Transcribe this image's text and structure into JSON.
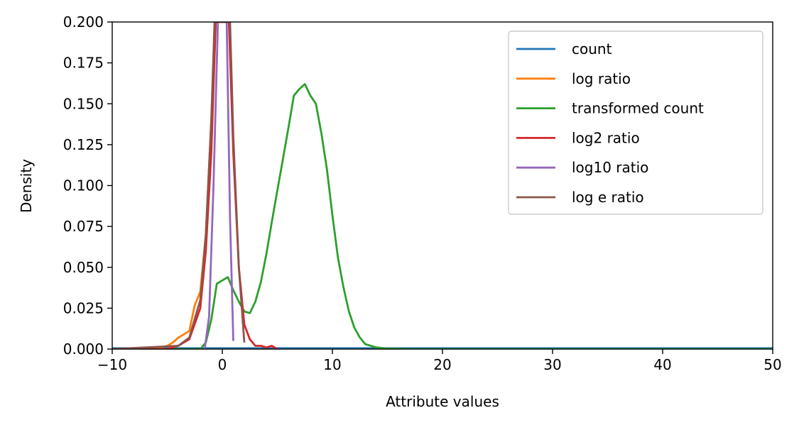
{
  "chart_data": {
    "type": "line",
    "xlabel": "Attribute values",
    "ylabel": "Density",
    "xlim": [
      -10,
      50
    ],
    "ylim": [
      0,
      0.2
    ],
    "x_ticks": [
      -10,
      0,
      10,
      20,
      30,
      40,
      50
    ],
    "x_tick_labels": [
      "−10",
      "0",
      "10",
      "20",
      "30",
      "40",
      "50"
    ],
    "y_ticks": [
      0,
      0.025,
      0.05,
      0.075,
      0.1,
      0.125,
      0.15,
      0.175,
      0.2
    ],
    "y_tick_labels": [
      "0.000",
      "0.025",
      "0.050",
      "0.075",
      "0.100",
      "0.125",
      "0.150",
      "0.175",
      "0.200"
    ],
    "grid": false,
    "legend_position": "top-right",
    "series": [
      {
        "name": "count",
        "color": "#1f77b4",
        "points": [
          [
            -10,
            0.0005
          ],
          [
            50,
            0.0005
          ]
        ]
      },
      {
        "name": "log ratio",
        "color": "#ff7f0e",
        "points": [
          [
            -10,
            0.0
          ],
          [
            -6,
            0.0003
          ],
          [
            -5,
            0.002
          ],
          [
            -4.5,
            0.004
          ],
          [
            -4,
            0.007
          ],
          [
            -3.5,
            0.009
          ],
          [
            -3,
            0.011
          ],
          [
            -2.5,
            0.027
          ],
          [
            -2,
            0.035
          ],
          [
            -1.5,
            0.07
          ],
          [
            -1,
            0.14
          ],
          [
            -0.6,
            0.2
          ]
        ]
      },
      {
        "name": "transformed count",
        "color": "#2ca02c",
        "points": [
          [
            -10,
            0.0
          ],
          [
            -2,
            0.0
          ],
          [
            -1.5,
            0.004
          ],
          [
            -1,
            0.018
          ],
          [
            -0.5,
            0.04
          ],
          [
            0.5,
            0.044
          ],
          [
            1,
            0.036
          ],
          [
            1.5,
            0.029
          ],
          [
            2,
            0.023
          ],
          [
            2.5,
            0.022
          ],
          [
            3,
            0.029
          ],
          [
            3.5,
            0.041
          ],
          [
            4,
            0.058
          ],
          [
            4.5,
            0.078
          ],
          [
            5,
            0.097
          ],
          [
            5.5,
            0.116
          ],
          [
            6,
            0.135
          ],
          [
            6.5,
            0.155
          ],
          [
            7,
            0.159
          ],
          [
            7.5,
            0.162
          ],
          [
            8,
            0.155
          ],
          [
            8.5,
            0.15
          ],
          [
            9,
            0.132
          ],
          [
            9.5,
            0.11
          ],
          [
            10,
            0.082
          ],
          [
            10.5,
            0.056
          ],
          [
            11,
            0.038
          ],
          [
            11.5,
            0.023
          ],
          [
            12,
            0.013
          ],
          [
            12.5,
            0.007
          ],
          [
            13,
            0.003
          ],
          [
            14,
            0.001
          ],
          [
            15,
            0.0003
          ],
          [
            17,
            0.0
          ],
          [
            50,
            0.0
          ]
        ]
      },
      {
        "name": "log2 ratio",
        "color": "#d62728",
        "points": [
          [
            -10,
            0.0
          ],
          [
            -5,
            0.0
          ],
          [
            -4,
            0.002
          ],
          [
            -3,
            0.006
          ],
          [
            -2,
            0.025
          ],
          [
            -1.5,
            0.06
          ],
          [
            -1,
            0.12
          ],
          [
            -0.6,
            0.2
          ],
          [
            0.6,
            0.2
          ],
          [
            1,
            0.12
          ],
          [
            1.5,
            0.05
          ],
          [
            2,
            0.015
          ],
          [
            2.5,
            0.006
          ],
          [
            3,
            0.002
          ],
          [
            3.5,
            0.002
          ],
          [
            4,
            0.001
          ],
          [
            4.5,
            0.002
          ],
          [
            5,
            0.0
          ]
        ]
      },
      {
        "name": "log10 ratio",
        "color": "#9467bd",
        "points": [
          [
            -1.6,
            0.0
          ],
          [
            -1.2,
            0.02
          ],
          [
            -0.8,
            0.1
          ],
          [
            -0.4,
            0.2
          ],
          [
            0.4,
            0.2
          ],
          [
            0.7,
            0.08
          ],
          [
            1.0,
            0.005
          ]
        ]
      },
      {
        "name": "log e ratio",
        "color": "#8c564b",
        "points": [
          [
            -10,
            0.0
          ],
          [
            -4,
            0.002
          ],
          [
            -3,
            0.007
          ],
          [
            -2,
            0.03
          ],
          [
            -1.5,
            0.07
          ],
          [
            -1,
            0.14
          ],
          [
            -0.7,
            0.2
          ],
          [
            0.7,
            0.2
          ],
          [
            1,
            0.13
          ],
          [
            1.5,
            0.05
          ],
          [
            2,
            0.004
          ]
        ]
      }
    ]
  }
}
